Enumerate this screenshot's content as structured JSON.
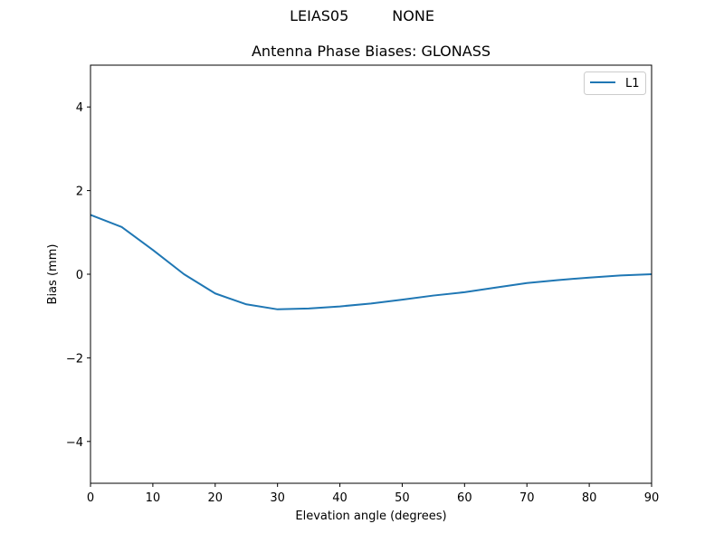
{
  "figure": {
    "suptitle_left": "LEIAS05",
    "suptitle_right": "NONE"
  },
  "chart_data": {
    "type": "line",
    "title": "Antenna Phase Biases: GLONASS",
    "suptitle": "LEIAS05          NONE",
    "xlabel": "Elevation angle (degrees)",
    "ylabel": "Bias (mm)",
    "xlim": [
      0,
      90
    ],
    "ylim": [
      -5,
      5
    ],
    "xticks": [
      0,
      10,
      20,
      30,
      40,
      50,
      60,
      70,
      80,
      90
    ],
    "yticks": [
      -4,
      -2,
      0,
      2,
      4
    ],
    "ytick_labels": [
      "−4",
      "−2",
      "0",
      "2",
      "4"
    ],
    "grid": false,
    "legend_position": "upper right",
    "x": [
      0,
      5,
      10,
      15,
      20,
      25,
      30,
      35,
      40,
      45,
      50,
      55,
      60,
      65,
      70,
      75,
      80,
      85,
      90
    ],
    "series": [
      {
        "name": "L1",
        "color": "#1f77b4",
        "values": [
          1.42,
          1.13,
          0.58,
          0.0,
          -0.46,
          -0.72,
          -0.84,
          -0.82,
          -0.77,
          -0.7,
          -0.61,
          -0.51,
          -0.43,
          -0.32,
          -0.21,
          -0.14,
          -0.08,
          -0.03,
          0.0
        ]
      }
    ]
  }
}
